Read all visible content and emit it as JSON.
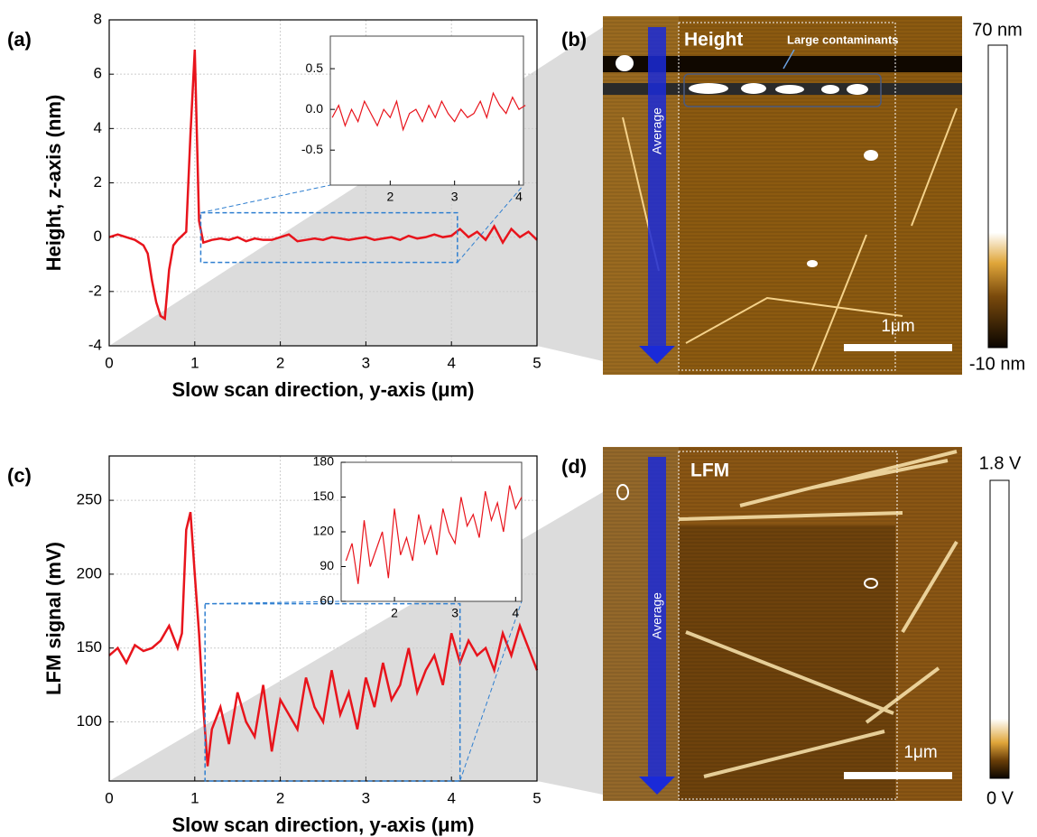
{
  "chart_data": [
    {
      "type": "line",
      "panel_label": "(a)",
      "xlabel": "Slow scan direction, y-axis (μm)",
      "ylabel": "Height, z-axis (nm)",
      "xlim": [
        0,
        5
      ],
      "ylim": [
        -4,
        8
      ],
      "xticks": [
        0,
        1,
        2,
        3,
        4,
        5
      ],
      "yticks": [
        -4,
        -2,
        0,
        2,
        4,
        6,
        8
      ],
      "grid": true,
      "x": [
        0,
        0.1,
        0.2,
        0.3,
        0.4,
        0.45,
        0.5,
        0.55,
        0.6,
        0.65,
        0.7,
        0.75,
        0.8,
        0.9,
        0.95,
        1,
        1.05,
        1.1,
        1.2,
        1.3,
        1.4,
        1.5,
        1.6,
        1.7,
        1.8,
        1.9,
        2,
        2.1,
        2.2,
        2.3,
        2.4,
        2.5,
        2.6,
        2.7,
        2.8,
        2.9,
        3,
        3.1,
        3.2,
        3.3,
        3.4,
        3.5,
        3.6,
        3.7,
        3.8,
        3.9,
        4,
        4.1,
        4.2,
        4.3,
        4.4,
        4.5,
        4.6,
        4.7,
        4.8,
        4.9,
        5
      ],
      "series": [
        {
          "color": "#e8141c",
          "values": [
            0,
            0.1,
            0,
            -0.1,
            -0.3,
            -0.6,
            -1.6,
            -2.4,
            -2.9,
            -3,
            -1.2,
            -0.3,
            -0.1,
            0.2,
            3.8,
            6.9,
            0.6,
            -0.2,
            -0.1,
            -0.05,
            -0.1,
            0,
            -0.15,
            -0.05,
            -0.1,
            -0.1,
            0,
            0.1,
            -0.15,
            -0.1,
            -0.05,
            -0.1,
            0,
            -0.05,
            -0.1,
            -0.05,
            0,
            -0.1,
            -0.05,
            0,
            -0.1,
            0.05,
            -0.05,
            0,
            0.1,
            0,
            0.05,
            0.3,
            0,
            0.2,
            -0.1,
            0.4,
            -0.2,
            0.3,
            0,
            0.2,
            -0.1
          ]
        }
      ],
      "inset": {
        "type": "line",
        "xlim": [
          1.07,
          4.07
        ],
        "ylim": [
          -0.93,
          0.9
        ],
        "xticks": [
          2,
          3,
          4
        ],
        "yticks": [
          {
            "value": -0.5,
            "label": "-0.5"
          },
          {
            "value": 0,
            "label": "0.0"
          },
          0.5
        ],
        "grid": false,
        "x": [
          1.1,
          1.2,
          1.3,
          1.4,
          1.5,
          1.6,
          1.7,
          1.8,
          1.9,
          2,
          2.1,
          2.2,
          2.3,
          2.4,
          2.5,
          2.6,
          2.7,
          2.8,
          2.9,
          3,
          3.1,
          3.2,
          3.3,
          3.4,
          3.5,
          3.6,
          3.7,
          3.8,
          3.9,
          4,
          4.1
        ],
        "series": [
          {
            "color": "#e8141c",
            "values": [
              -0.1,
              0.05,
              -0.2,
              0,
              -0.15,
              0.1,
              -0.05,
              -0.2,
              0,
              -0.1,
              0.1,
              -0.25,
              -0.05,
              0,
              -0.15,
              0.05,
              -0.1,
              0.1,
              -0.05,
              -0.15,
              0,
              -0.1,
              -0.05,
              0.1,
              -0.1,
              0.2,
              0.05,
              -0.05,
              0.15,
              0,
              0.05
            ]
          }
        ]
      }
    },
    {
      "type": "line",
      "panel_label": "(c)",
      "xlabel": "Slow scan direction, y-axis (μm)",
      "ylabel": "LFM signal (mV)",
      "xlim": [
        0,
        5
      ],
      "ylim": [
        60,
        280
      ],
      "xticks": [
        0,
        1,
        2,
        3,
        4,
        5
      ],
      "yticks": [
        100,
        150,
        200,
        250
      ],
      "grid": true,
      "x": [
        0,
        0.1,
        0.2,
        0.3,
        0.4,
        0.5,
        0.6,
        0.7,
        0.8,
        0.85,
        0.9,
        0.95,
        1,
        1.05,
        1.1,
        1.15,
        1.2,
        1.3,
        1.4,
        1.5,
        1.6,
        1.7,
        1.8,
        1.9,
        2,
        2.1,
        2.2,
        2.3,
        2.4,
        2.5,
        2.6,
        2.7,
        2.8,
        2.9,
        3,
        3.1,
        3.2,
        3.3,
        3.4,
        3.5,
        3.6,
        3.7,
        3.8,
        3.9,
        4,
        4.1,
        4.2,
        4.3,
        4.4,
        4.5,
        4.6,
        4.7,
        4.8,
        4.9,
        5
      ],
      "series": [
        {
          "color": "#e8141c",
          "values": [
            145,
            150,
            140,
            152,
            148,
            150,
            155,
            165,
            150,
            160,
            230,
            242,
            200,
            160,
            110,
            70,
            95,
            110,
            85,
            120,
            100,
            90,
            125,
            80,
            115,
            105,
            95,
            130,
            110,
            100,
            135,
            105,
            120,
            95,
            130,
            110,
            140,
            115,
            125,
            150,
            120,
            135,
            145,
            125,
            160,
            140,
            155,
            145,
            150,
            135,
            160,
            145,
            165,
            150,
            135
          ]
        }
      ],
      "inset": {
        "type": "line",
        "xlim": [
          1.12,
          4.1
        ],
        "ylim": [
          60,
          180
        ],
        "xticks": [
          2,
          3,
          4
        ],
        "yticks": [
          60,
          90,
          120,
          150,
          180
        ],
        "grid": false,
        "x": [
          1.2,
          1.3,
          1.4,
          1.5,
          1.6,
          1.7,
          1.8,
          1.9,
          2,
          2.1,
          2.2,
          2.3,
          2.4,
          2.5,
          2.6,
          2.7,
          2.8,
          2.9,
          3,
          3.1,
          3.2,
          3.3,
          3.4,
          3.5,
          3.6,
          3.7,
          3.8,
          3.9,
          4,
          4.1
        ],
        "series": [
          {
            "color": "#e8141c",
            "values": [
              95,
              110,
              75,
              130,
              90,
              105,
              120,
              80,
              140,
              100,
              115,
              95,
              135,
              110,
              125,
              100,
              140,
              120,
              110,
              150,
              125,
              135,
              115,
              155,
              130,
              145,
              120,
              160,
              140,
              150
            ]
          }
        ]
      }
    }
  ],
  "images": [
    {
      "panel_label": "(b)",
      "title": "Height",
      "annotation": "Large contaminants",
      "arrow_label": "Average",
      "scale_bar": "1μm",
      "colorbar_max": "70 nm",
      "colorbar_min": "-10 nm"
    },
    {
      "panel_label": "(d)",
      "title": "LFM",
      "arrow_label": "Average",
      "scale_bar": "1μm",
      "colorbar_max": "1.8 V",
      "colorbar_min": "0 V"
    }
  ]
}
